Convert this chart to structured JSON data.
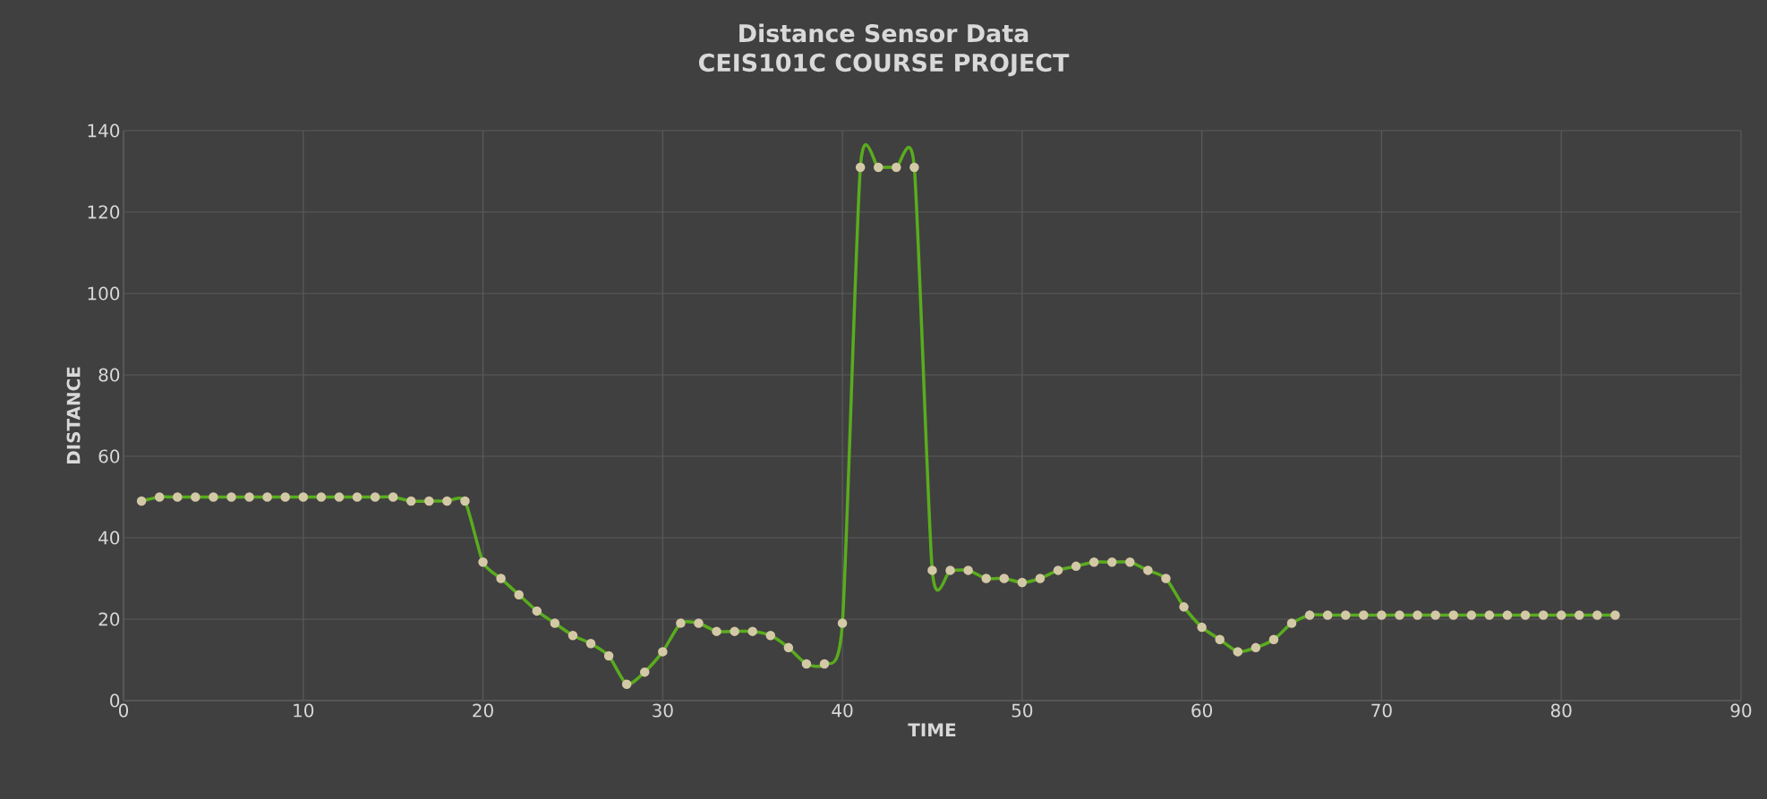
{
  "chart_data": {
    "type": "line",
    "title": "Distance Sensor Data",
    "subtitle": "CEIS101C COURSE PROJECT",
    "xlabel": "TIME",
    "ylabel": "DISTANCE",
    "x": [
      1,
      2,
      3,
      4,
      5,
      6,
      7,
      8,
      9,
      10,
      11,
      12,
      13,
      14,
      15,
      16,
      17,
      18,
      19,
      20,
      21,
      22,
      23,
      24,
      25,
      26,
      27,
      28,
      29,
      30,
      31,
      32,
      33,
      34,
      35,
      36,
      37,
      38,
      39,
      40,
      41,
      42,
      43,
      44,
      45,
      46,
      47,
      48,
      49,
      50,
      51,
      52,
      53,
      54,
      55,
      56,
      57,
      58,
      59,
      60,
      61,
      62,
      63,
      64,
      65,
      66,
      67,
      68,
      69,
      70,
      71,
      72,
      73,
      74,
      75,
      76,
      77,
      78,
      79,
      80,
      81,
      82,
      83
    ],
    "series": [
      {
        "color": "#5aac1e",
        "values": [
          49,
          50,
          50,
          50,
          50,
          50,
          50,
          50,
          50,
          50,
          50,
          50,
          50,
          50,
          50,
          49,
          49,
          49,
          49,
          34,
          30,
          26,
          22,
          19,
          16,
          14,
          11,
          4,
          7,
          12,
          19,
          19,
          17,
          17,
          17,
          16,
          13,
          9,
          9,
          19,
          131,
          131,
          131,
          131,
          32,
          32,
          32,
          30,
          30,
          29,
          30,
          32,
          33,
          34,
          34,
          34,
          32,
          30,
          23,
          18,
          15,
          12,
          13,
          15,
          19,
          21,
          21,
          21,
          21,
          21,
          21,
          21,
          21,
          21,
          21,
          21,
          21,
          21,
          21,
          21,
          21,
          21,
          21
        ]
      }
    ],
    "xlim": [
      0,
      90
    ],
    "ylim": [
      0,
      140
    ],
    "xticks": [
      0,
      10,
      20,
      30,
      40,
      50,
      60,
      70,
      80,
      90
    ],
    "yticks": [
      0,
      20,
      40,
      60,
      80,
      100,
      120,
      140
    ],
    "grid": true,
    "marker": "circle",
    "line_style": "solid"
  }
}
